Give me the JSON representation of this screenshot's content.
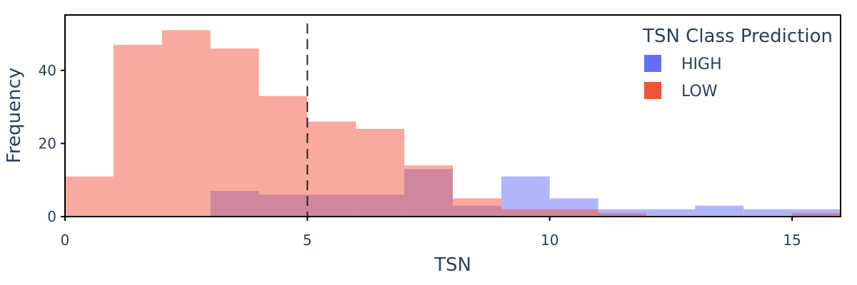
{
  "chart_data": {
    "type": "bar",
    "subtype": "overlaid-histogram",
    "title": "",
    "xlabel": "TSN",
    "ylabel": "Frequency",
    "xlim": [
      0,
      16
    ],
    "ylim": [
      0,
      54
    ],
    "x_ticks": [
      0,
      5,
      10,
      15
    ],
    "y_ticks": [
      0,
      20,
      40
    ],
    "grid": false,
    "legend": {
      "title": "TSN Class Prediction",
      "placement": "top-right"
    },
    "reference_line": {
      "x": 5,
      "style": "dashed",
      "color": "#222222"
    },
    "bin_edges": [
      0,
      1,
      2,
      3,
      4,
      5,
      6,
      7,
      8,
      9,
      10,
      11,
      12,
      13,
      14,
      15,
      16
    ],
    "series": [
      {
        "name": "HIGH",
        "color": "#636efa",
        "opacity": 0.5,
        "values": [
          0,
          0,
          0,
          7,
          6,
          6,
          6,
          13,
          3,
          11,
          5,
          2,
          2,
          3,
          2,
          2
        ]
      },
      {
        "name": "LOW",
        "color": "#ef553b",
        "opacity": 0.5,
        "values": [
          11,
          47,
          51,
          46,
          33,
          26,
          24,
          14,
          5,
          2,
          2,
          1,
          0,
          0,
          0,
          1
        ]
      }
    ]
  }
}
